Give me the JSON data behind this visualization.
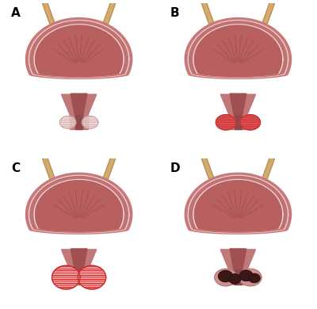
{
  "panels": [
    "A",
    "B",
    "C",
    "D"
  ],
  "background_color": "#ffffff",
  "colors": {
    "bladder_outer_wall": "#c87878",
    "bladder_mid_wall": "#d99090",
    "bladder_inner_fill": "#b86868",
    "bladder_cavity": "#c07070",
    "white_line1": "#f0d0d0",
    "white_line2": "#e8c8c8",
    "rugae": "#a05858",
    "neck_outer": "#c07878",
    "neck_inner": "#a05050",
    "urethra_tube": "#904848",
    "ureter_outer": "#c8904040",
    "ureter_color": "#c8a060",
    "label_color": "#000000",
    "prostate_A_fill": "#e8c8c8",
    "prostate_A_stripe": "#d0a0a0",
    "prostate_B_fill": "#e05050",
    "prostate_B_stripe": "#c83030",
    "prostate_C_fill": "#e03030",
    "prostate_C_stripe": "#ffffff",
    "prostate_D_base": "#d09090",
    "prostate_D_nodule": "#4a2020",
    "prostate_D_nodule_border": "#2a1010"
  },
  "label_fontsize": 11,
  "label_fontweight": "bold"
}
